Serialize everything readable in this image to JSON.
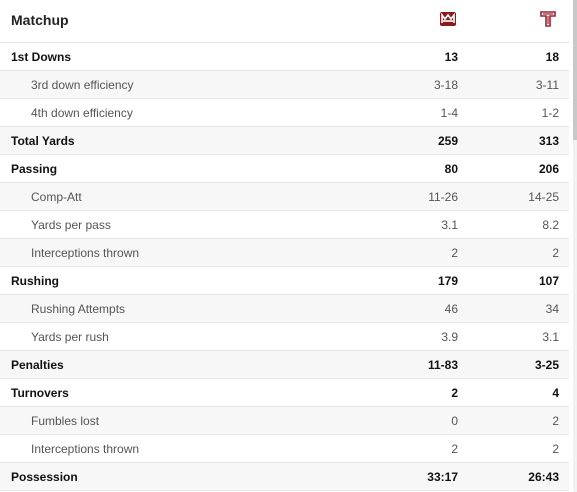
{
  "header": {
    "title": "Matchup"
  },
  "teams": [
    {
      "logo": "umass-logo",
      "color": "#881c1c"
    },
    {
      "logo": "temple-logo",
      "color": "#9d2235"
    }
  ],
  "rows": [
    {
      "label": "1st Downs",
      "away": "13",
      "home": "18",
      "kind": "main"
    },
    {
      "label": "3rd down efficiency",
      "away": "3-18",
      "home": "3-11",
      "kind": "sub"
    },
    {
      "label": "4th down efficiency",
      "away": "1-4",
      "home": "1-2",
      "kind": "sub"
    },
    {
      "label": "Total Yards",
      "away": "259",
      "home": "313",
      "kind": "main"
    },
    {
      "label": "Passing",
      "away": "80",
      "home": "206",
      "kind": "main"
    },
    {
      "label": "Comp-Att",
      "away": "11-26",
      "home": "14-25",
      "kind": "sub"
    },
    {
      "label": "Yards per pass",
      "away": "3.1",
      "home": "8.2",
      "kind": "sub"
    },
    {
      "label": "Interceptions thrown",
      "away": "2",
      "home": "2",
      "kind": "sub"
    },
    {
      "label": "Rushing",
      "away": "179",
      "home": "107",
      "kind": "main"
    },
    {
      "label": "Rushing Attempts",
      "away": "46",
      "home": "34",
      "kind": "sub"
    },
    {
      "label": "Yards per rush",
      "away": "3.9",
      "home": "3.1",
      "kind": "sub"
    },
    {
      "label": "Penalties",
      "away": "11-83",
      "home": "3-25",
      "kind": "main"
    },
    {
      "label": "Turnovers",
      "away": "2",
      "home": "4",
      "kind": "main"
    },
    {
      "label": "Fumbles lost",
      "away": "0",
      "home": "2",
      "kind": "sub"
    },
    {
      "label": "Interceptions thrown",
      "away": "2",
      "home": "2",
      "kind": "sub"
    },
    {
      "label": "Possession",
      "away": "33:17",
      "home": "26:43",
      "kind": "main"
    }
  ]
}
